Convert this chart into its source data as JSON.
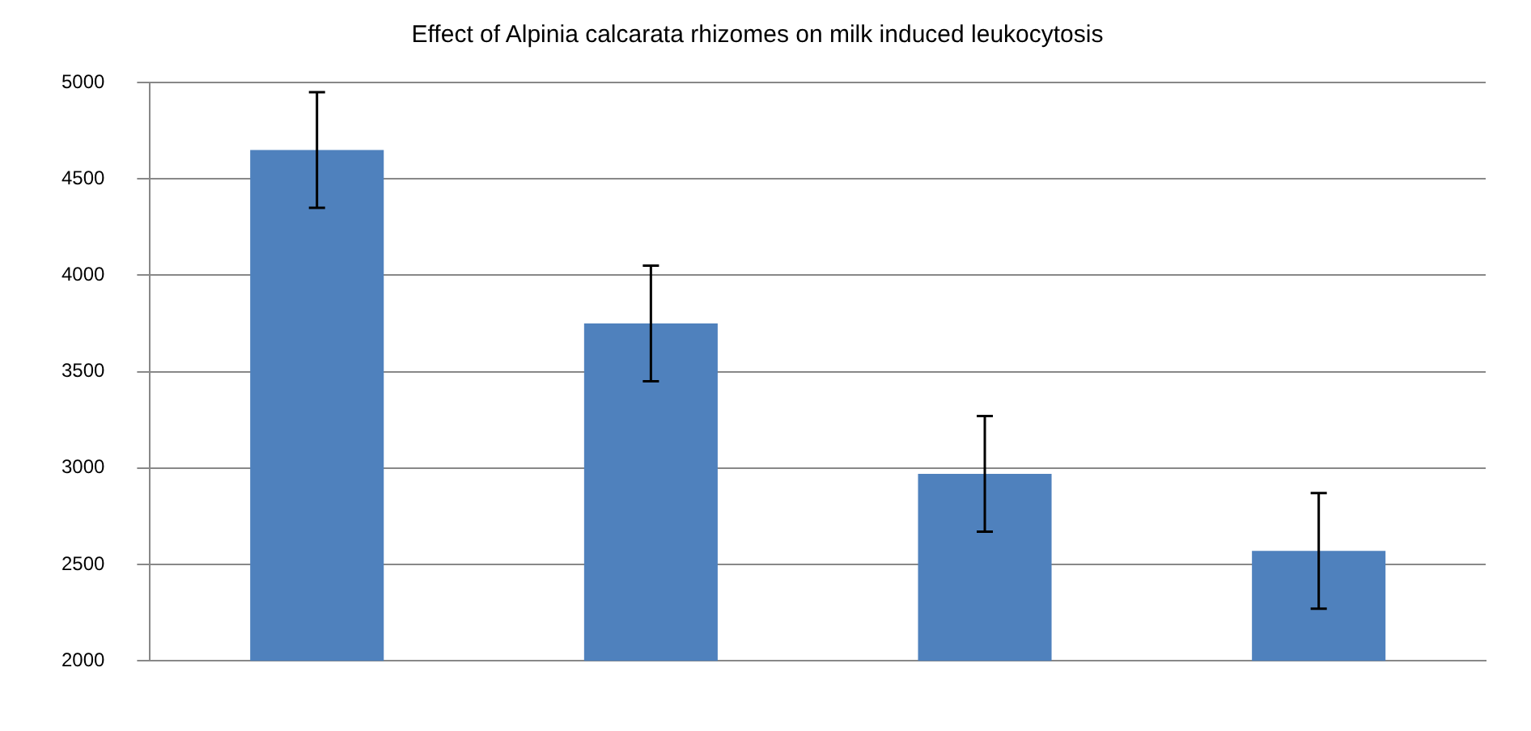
{
  "chart_data": {
    "type": "bar",
    "title": "Effect of Alpinia calcarata rhizomes on milk induced leukocytosis",
    "categories": [
      null,
      null,
      null,
      null
    ],
    "values": [
      4650,
      3750,
      2970,
      2570
    ],
    "errors": [
      300,
      300,
      300,
      300
    ],
    "color": "#4f81bd",
    "ylim": [
      2000,
      5000
    ],
    "yticks": [
      2000,
      2500,
      3000,
      3500,
      4000,
      4500,
      5000
    ],
    "grid": "y"
  }
}
